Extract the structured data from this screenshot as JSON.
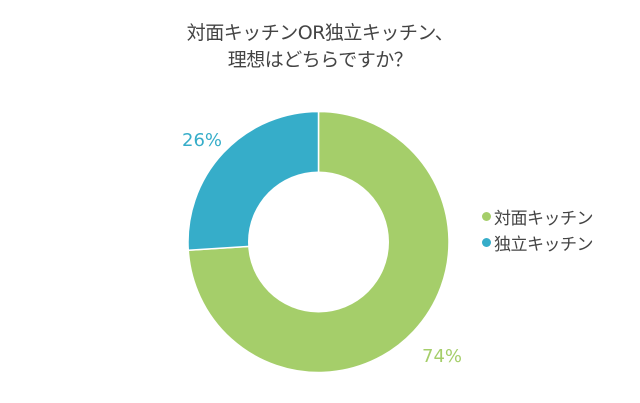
{
  "title": {
    "line1": "対面キッチンOR独立キッチン、",
    "line2": "理想はどちらですか？"
  },
  "legend": [
    {
      "label": "対面キッチン",
      "color": "#A5CE6A"
    },
    {
      "label": "独立キッチン",
      "color": "#36ADC9"
    }
  ],
  "labels": {
    "face_pct": "74%",
    "independent_pct": "26%"
  },
  "chart_data": {
    "type": "pie",
    "variant": "donut",
    "title": "対面キッチンOR独立キッチン、理想はどちらですか？",
    "categories": [
      "対面キッチン",
      "独立キッチン"
    ],
    "values": [
      74,
      26
    ],
    "unit": "%",
    "colors": [
      "#A5CE6A",
      "#36ADC9"
    ],
    "data_labels": [
      "74%",
      "26%"
    ],
    "legend_position": "right",
    "start_angle": "12 o'clock, clockwise"
  }
}
